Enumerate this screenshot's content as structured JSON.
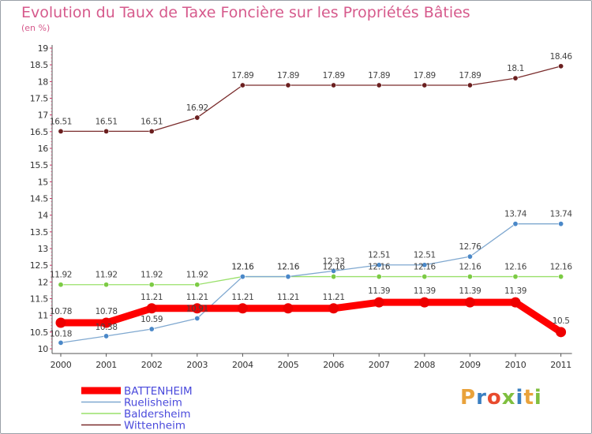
{
  "page": {
    "title": "Evolution du Taux de Taxe Foncière sur les Propriétés Bâties",
    "subtitle": "(en %)",
    "logo_text": "Proxiti",
    "logo_colors": [
      "#e9a23b",
      "#3a7fc1",
      "#e84b2e",
      "#7fbf3f",
      "#3a7fc1",
      "#e9a23b",
      "#7fbf3f"
    ]
  },
  "chart_data": {
    "type": "line",
    "title": "Evolution du Taux de Taxe Foncière sur les Propriétés Bâties",
    "ylabel": "(en %)",
    "xlabel": "",
    "ylim": [
      10,
      19
    ],
    "y_ticks": [
      "10",
      "10.5",
      "11",
      "11.5",
      "12",
      "12.5",
      "13",
      "13.5",
      "14",
      "14.5",
      "15",
      "15.5",
      "16",
      "16.5",
      "17",
      "17.5",
      "18",
      "18.5",
      "19"
    ],
    "categories": [
      "2000",
      "2001",
      "2002",
      "2003",
      "2004",
      "2005",
      "2006",
      "2007",
      "2008",
      "2009",
      "2010",
      "2011"
    ],
    "legend_position": "bottom-left",
    "series": [
      {
        "name": "Wittenheim",
        "color": "#7a2c2c",
        "marker_color": "#6b1f1f",
        "values": [
          16.51,
          16.51,
          16.51,
          16.92,
          17.89,
          17.89,
          17.89,
          17.89,
          17.89,
          17.89,
          18.1,
          18.46
        ],
        "labels": [
          "16.51",
          "16.51",
          "16.51",
          "16.92",
          "17.89",
          "17.89",
          "17.89",
          "17.89",
          "17.89",
          "17.89",
          "18.1",
          "18.46"
        ]
      },
      {
        "name": "Baldersheim",
        "color": "#99e06a",
        "marker_color": "#7ccb44",
        "values": [
          11.92,
          11.92,
          11.92,
          11.92,
          12.16,
          12.16,
          12.16,
          12.16,
          12.16,
          12.16,
          12.16,
          12.16
        ],
        "labels": [
          "11.92",
          "11.92",
          "11.92",
          "11.92",
          "12.16",
          "12.16",
          "12.16",
          "12.16",
          "12.16",
          "12.16",
          "12.16",
          "12.16"
        ]
      },
      {
        "name": "Ruelisheim",
        "color": "#7fa8d0",
        "marker_color": "#4a88c8",
        "values": [
          10.18,
          10.38,
          10.59,
          10.91,
          12.16,
          12.16,
          12.33,
          12.51,
          12.51,
          12.76,
          13.74,
          13.74
        ],
        "labels": [
          "10.18",
          "10.38",
          "10.59",
          "10.91",
          "12.16",
          "12.16",
          "12.33",
          "12.51",
          "12.51",
          "12.76",
          "13.74",
          "13.74"
        ]
      },
      {
        "name": "BATTENHEIM",
        "color": "#ff0000",
        "marker_color": "#ee0000",
        "values": [
          10.78,
          10.78,
          11.21,
          11.21,
          11.21,
          11.21,
          11.21,
          11.39,
          11.39,
          11.39,
          11.39,
          10.5
        ],
        "labels": [
          "10.78",
          "10.78",
          "11.21",
          "11.21",
          "11.21",
          "11.21",
          "11.21",
          "11.39",
          "11.39",
          "11.39",
          "11.39",
          "10.5"
        ]
      }
    ],
    "legend": [
      {
        "name": "BATTENHEIM",
        "color": "#ff0000",
        "text_color": "#4a4adc"
      },
      {
        "name": "Ruelisheim",
        "color": "#7fa8d0",
        "text_color": "#4a4adc"
      },
      {
        "name": "Baldersheim",
        "color": "#99e06a",
        "text_color": "#4a4adc"
      },
      {
        "name": "Wittenheim",
        "color": "#7a2c2c",
        "text_color": "#4a4adc"
      }
    ]
  }
}
